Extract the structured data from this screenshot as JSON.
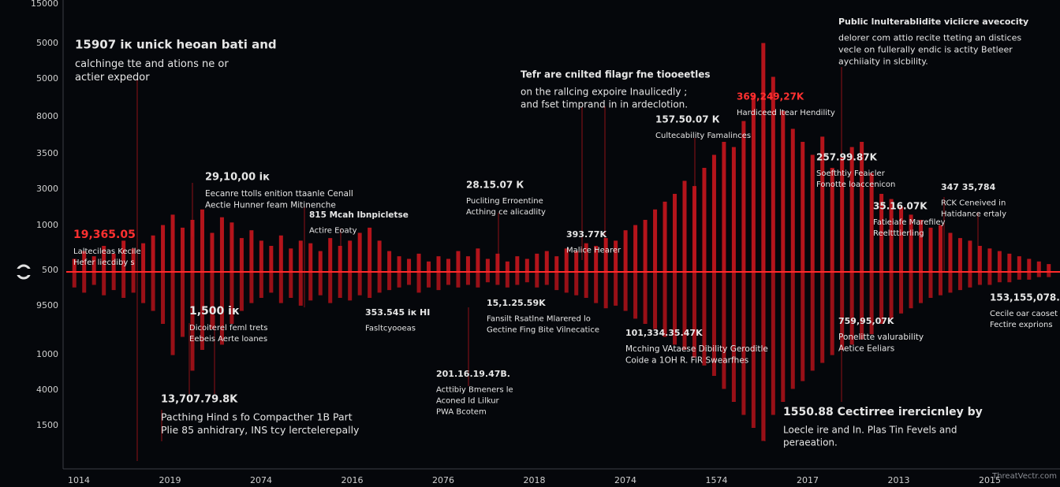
{
  "chart_data": {
    "type": "wave",
    "y_axis_labels": [
      "15000",
      "5000",
      "5000",
      "8000",
      "3500",
      "3000",
      "1000",
      "500",
      "9500",
      "1000",
      "4000",
      "1500"
    ],
    "x_axis_labels": [
      "1014",
      "2019",
      "2074",
      "2016",
      "2076",
      "2018",
      "2074",
      "1574",
      "2017",
      "2013",
      "2015"
    ],
    "ylim": [
      -1,
      1
    ],
    "series": [
      {
        "color": "#c8161d",
        "values": [
          0.05,
          0.08,
          0.06,
          0.1,
          0.07,
          0.12,
          0.09,
          0.11,
          0.14,
          0.18,
          0.22,
          0.17,
          0.2,
          0.24,
          0.15,
          0.21,
          0.19,
          0.13,
          0.16,
          0.12,
          0.1,
          0.14,
          0.09,
          0.12,
          0.11,
          0.08,
          0.13,
          0.1,
          0.12,
          0.15,
          0.17,
          0.12,
          0.08,
          0.06,
          0.05,
          0.07,
          0.04,
          0.06,
          0.05,
          0.08,
          0.06,
          0.09,
          0.05,
          0.07,
          0.04,
          0.06,
          0.05,
          0.07,
          0.08,
          0.06,
          0.09,
          0.08,
          0.11,
          0.1,
          0.13,
          0.12,
          0.16,
          0.18,
          0.2,
          0.24,
          0.27,
          0.3,
          0.35,
          0.33,
          0.4,
          0.45,
          0.5,
          0.48,
          0.58,
          0.68,
          0.88,
          0.75,
          0.62,
          0.55,
          0.5,
          0.45,
          0.52,
          0.4,
          0.44,
          0.48,
          0.5,
          0.38,
          0.3,
          0.28,
          0.25,
          0.22,
          0.2,
          0.17,
          0.18,
          0.15,
          0.13,
          0.12,
          0.1,
          0.09,
          0.08,
          0.07,
          0.06,
          0.05,
          0.04,
          0.03
        ]
      },
      {
        "color": "#a81218",
        "values": [
          -0.06,
          -0.08,
          -0.05,
          -0.09,
          -0.07,
          -0.1,
          -0.08,
          -0.12,
          -0.15,
          -0.2,
          -0.32,
          -0.25,
          -0.38,
          -0.3,
          -0.22,
          -0.28,
          -0.2,
          -0.15,
          -0.12,
          -0.1,
          -0.08,
          -0.12,
          -0.1,
          -0.13,
          -0.11,
          -0.09,
          -0.12,
          -0.1,
          -0.11,
          -0.09,
          -0.1,
          -0.08,
          -0.07,
          -0.06,
          -0.05,
          -0.08,
          -0.06,
          -0.07,
          -0.05,
          -0.06,
          -0.05,
          -0.06,
          -0.04,
          -0.05,
          -0.06,
          -0.05,
          -0.04,
          -0.06,
          -0.05,
          -0.07,
          -0.08,
          -0.09,
          -0.1,
          -0.12,
          -0.14,
          -0.13,
          -0.15,
          -0.18,
          -0.2,
          -0.22,
          -0.25,
          -0.28,
          -0.3,
          -0.33,
          -0.36,
          -0.4,
          -0.45,
          -0.5,
          -0.55,
          -0.6,
          -0.65,
          -0.55,
          -0.5,
          -0.45,
          -0.42,
          -0.38,
          -0.35,
          -0.32,
          -0.3,
          -0.28,
          -0.26,
          -0.24,
          -0.2,
          -0.18,
          -0.16,
          -0.14,
          -0.12,
          -0.1,
          -0.09,
          -0.08,
          -0.07,
          -0.06,
          -0.05,
          -0.05,
          -0.04,
          -0.04,
          -0.03,
          -0.03,
          -0.02,
          -0.02
        ]
      }
    ],
    "baseline_color": "#ff2a2a",
    "annotations": [
      {
        "lines": [
          "15907 ік unick heoan bati and",
          "calchinge tte and ations ne or",
          "actier expedor"
        ]
      },
      {
        "lines": [
          "Tefr are cnilted filagr fne tiooeetles",
          "on the rallcing expoire Inaulicedly ;",
          "and fset timprand in in ardeclotion."
        ]
      },
      {
        "lines": [
          "Public lnulterablidite viciicre avecocity",
          "delorer com attio recite tteting an distices",
          "vecle on fullerally endic is actity Betleer",
          "aychiiaity in slcbility."
        ]
      },
      {
        "lines": [
          "29,10,00 ік",
          "Eecanre ttolls enition ttaanle Cenall",
          "Aectie Hunner feam Mitinenche"
        ]
      },
      {
        "lines": [
          "19,365.05",
          "Laltecileas Kecile",
          "Hefer liecdiby s"
        ],
        "color": "#ff3030"
      },
      {
        "lines": [
          "815 Mcah Ibnpicletse",
          "Actire Eoaty"
        ]
      },
      {
        "lines": [
          "28.15.07 К",
          "Pucliting Erroentine",
          "Acthing ce alicadlity"
        ]
      },
      {
        "lines": [
          "393.77K",
          "Malice Hearer"
        ]
      },
      {
        "lines": [
          "157.50.07 К",
          "Cultecability Famalinces"
        ]
      },
      {
        "lines": [
          "369,249,27K",
          "Hardiceed ltear Hendility"
        ],
        "color": "#ff3030"
      },
      {
        "lines": [
          "257.99.87K",
          "Soefthtiy Feaicler",
          "Fonotte loaccenicon"
        ]
      },
      {
        "lines": [
          "35.16.07K",
          "Fatieiafe Marefiley",
          "Reeltttierling"
        ]
      },
      {
        "lines": [
          "347 35,784",
          "RCK Ceneived in",
          "Hatidance ertaly"
        ]
      },
      {
        "lines": [
          "1,500 ік",
          "Dicoiterel feml trets",
          "Eebeis Aerte loanes"
        ]
      },
      {
        "lines": [
          "353.545 ік HI",
          "Fasltcyooeas"
        ]
      },
      {
        "lines": [
          "15,1.25.59K",
          "Fansilt Rsatlne Mlarered lo",
          "Gectine Fing Bite Vilnecatice"
        ]
      },
      {
        "lines": [
          "101,334.35.47K",
          "Mcching VAtaese Dibility Geroditle",
          "Coide a 1OH R. FiR Swearfhes"
        ]
      },
      {
        "lines": [
          "759,95,07K",
          "Ponelitte valurability",
          "Aetice Eeliars"
        ]
      },
      {
        "lines": [
          "153,155,078.",
          "Cecile oar caoset Ic",
          "Fectire exprions"
        ]
      },
      {
        "lines": [
          "201.16.19.47B.",
          "Acttibiy Bmeners le",
          "Aconed ld Lilkur",
          "PWA Bcotem"
        ]
      },
      {
        "lines": [
          "13,707.79.8K",
          "Pacthing Hind s fo Compacther 1B Part",
          "Plie 85 anhidrary, INS tcy lerctelerepally"
        ]
      },
      {
        "lines": [
          "1550.88 Cectirree irercicnley by",
          "Loecle ire and In. Plas Tin Fevels and",
          "peraeation."
        ]
      }
    ],
    "watermark": "ThreatVectr.com"
  }
}
